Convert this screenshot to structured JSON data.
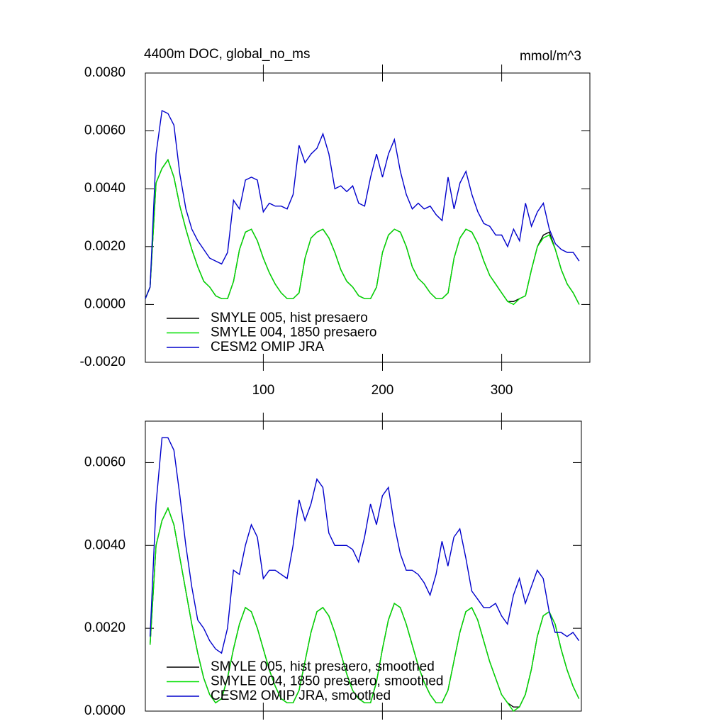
{
  "chart_data": [
    {
      "type": "line",
      "title": "4400m DOC, global_no_ms",
      "units": "mmol/m^3",
      "xlim": [
        1,
        374
      ],
      "ylim": [
        -0.002,
        0.008
      ],
      "xticks": [
        100,
        200,
        300
      ],
      "yticks": [
        {
          "value": -0.002,
          "label": "-0.0020"
        },
        {
          "value": 0,
          "label": "0.0000"
        },
        {
          "value": 0.002,
          "label": "0.0020"
        },
        {
          "value": 0.004,
          "label": "0.0040"
        },
        {
          "value": 0.006,
          "label": "0.0060"
        },
        {
          "value": 0.008,
          "label": "0.0080"
        }
      ],
      "legend": "lower left",
      "x": [
        1,
        5,
        10,
        15,
        20,
        25,
        30,
        35,
        40,
        45,
        50,
        55,
        60,
        65,
        70,
        75,
        80,
        85,
        90,
        95,
        100,
        105,
        110,
        115,
        120,
        125,
        130,
        135,
        140,
        145,
        150,
        155,
        160,
        165,
        170,
        175,
        180,
        185,
        190,
        195,
        200,
        205,
        210,
        215,
        220,
        225,
        230,
        235,
        240,
        245,
        250,
        255,
        260,
        265,
        270,
        275,
        280,
        285,
        290,
        295,
        300,
        305,
        310,
        315,
        320,
        325,
        330,
        335,
        340,
        345,
        350,
        355,
        360,
        365
      ],
      "series": [
        {
          "name": "SMYLE 005, hist presaero",
          "color": "#000000",
          "values": [
            0.0002,
            0.0006,
            0.0042,
            0.0047,
            0.005,
            0.0044,
            0.0034,
            0.0026,
            0.0019,
            0.0013,
            0.0008,
            0.0006,
            0.0003,
            0.0002,
            0.0002,
            0.0008,
            0.0019,
            0.0025,
            0.0026,
            0.0022,
            0.0016,
            0.0011,
            0.0007,
            0.0004,
            0.0002,
            0.0002,
            0.0004,
            0.0016,
            0.0023,
            0.0025,
            0.0026,
            0.0023,
            0.0018,
            0.0012,
            0.0008,
            0.0006,
            0.0003,
            0.0002,
            0.0002,
            0.0006,
            0.0018,
            0.0024,
            0.0026,
            0.0025,
            0.002,
            0.0013,
            0.0009,
            0.0007,
            0.0004,
            0.0002,
            0.0002,
            0.0004,
            0.0016,
            0.0023,
            0.0026,
            0.0025,
            0.0021,
            0.0015,
            0.001,
            0.0007,
            0.0004,
            0.0001,
            0.0001,
            0.0002,
            0.0003,
            0.0012,
            0.002,
            0.0024,
            0.0025,
            0.0019,
            0.0012,
            0.0007,
            0.0004,
            0.0
          ]
        },
        {
          "name": "SMYLE 004, 1850 presaero",
          "color": "#00e000",
          "values": [
            0.0002,
            0.0006,
            0.0042,
            0.0047,
            0.005,
            0.0044,
            0.0034,
            0.0026,
            0.0019,
            0.0013,
            0.0008,
            0.0006,
            0.0003,
            0.0002,
            0.0002,
            0.0008,
            0.0019,
            0.0025,
            0.0026,
            0.0022,
            0.0016,
            0.0011,
            0.0007,
            0.0004,
            0.0002,
            0.0002,
            0.0004,
            0.0016,
            0.0023,
            0.0025,
            0.0026,
            0.0023,
            0.0018,
            0.0012,
            0.0008,
            0.0006,
            0.0003,
            0.0002,
            0.0002,
            0.0006,
            0.0018,
            0.0024,
            0.0026,
            0.0025,
            0.002,
            0.0013,
            0.0009,
            0.0007,
            0.0004,
            0.0002,
            0.0002,
            0.0004,
            0.0016,
            0.0023,
            0.0026,
            0.0025,
            0.0021,
            0.0015,
            0.001,
            0.0007,
            0.0004,
            0.0001,
            0.0,
            0.0002,
            0.0003,
            0.0012,
            0.002,
            0.0023,
            0.0024,
            0.0019,
            0.0012,
            0.0007,
            0.0004,
            0.0
          ]
        },
        {
          "name": "CESM2 OMIP JRA",
          "color": "#0000cc",
          "values": [
            0.0002,
            0.0006,
            0.0052,
            0.0067,
            0.0066,
            0.0062,
            0.0045,
            0.0033,
            0.0026,
            0.0022,
            0.0019,
            0.0016,
            0.0015,
            0.0014,
            0.0018,
            0.0036,
            0.0033,
            0.0043,
            0.0044,
            0.0043,
            0.0032,
            0.0035,
            0.0034,
            0.0034,
            0.0033,
            0.0038,
            0.0055,
            0.0049,
            0.0052,
            0.0054,
            0.0059,
            0.0052,
            0.004,
            0.0041,
            0.0039,
            0.0041,
            0.0035,
            0.0034,
            0.0044,
            0.0052,
            0.0044,
            0.0052,
            0.0057,
            0.0046,
            0.0038,
            0.0033,
            0.0035,
            0.0033,
            0.0034,
            0.0031,
            0.0029,
            0.0044,
            0.0033,
            0.0042,
            0.0046,
            0.0038,
            0.0032,
            0.0028,
            0.0027,
            0.0024,
            0.0024,
            0.002,
            0.0026,
            0.0022,
            0.0035,
            0.0027,
            0.0032,
            0.0035,
            0.0026,
            0.0021,
            0.0019,
            0.0018,
            0.0018,
            0.0015
          ]
        }
      ]
    },
    {
      "type": "line",
      "xlim": [
        1,
        367
      ],
      "ylim": [
        0,
        0.007
      ],
      "xticks": [
        100,
        200,
        300
      ],
      "yticks": [
        {
          "value": 0,
          "label": "0.0000"
        },
        {
          "value": 0.002,
          "label": "0.0020"
        },
        {
          "value": 0.004,
          "label": "0.0040"
        },
        {
          "value": 0.006,
          "label": "0.0060"
        }
      ],
      "legend": "lower left",
      "x": [
        5,
        10,
        15,
        20,
        25,
        30,
        35,
        40,
        45,
        50,
        55,
        60,
        65,
        70,
        75,
        80,
        85,
        90,
        95,
        100,
        105,
        110,
        115,
        120,
        125,
        130,
        135,
        140,
        145,
        150,
        155,
        160,
        165,
        170,
        175,
        180,
        185,
        190,
        195,
        200,
        205,
        210,
        215,
        220,
        225,
        230,
        235,
        240,
        245,
        250,
        255,
        260,
        265,
        270,
        275,
        280,
        285,
        290,
        295,
        300,
        305,
        310,
        315,
        320,
        325,
        330,
        335,
        340,
        345,
        350,
        355,
        360,
        365
      ],
      "series": [
        {
          "name": "SMYLE 005, hist presaero, smoothed",
          "color": "#000000",
          "values": [
            0.0016,
            0.004,
            0.0046,
            0.0049,
            0.0045,
            0.0037,
            0.0029,
            0.0021,
            0.0014,
            0.0008,
            0.0004,
            0.0002,
            0.0003,
            0.0008,
            0.0015,
            0.0021,
            0.0025,
            0.0024,
            0.002,
            0.0015,
            0.001,
            0.0006,
            0.0003,
            0.0002,
            0.0002,
            0.0005,
            0.0012,
            0.0019,
            0.0024,
            0.0025,
            0.0023,
            0.0019,
            0.0014,
            0.0009,
            0.0005,
            0.0003,
            0.0002,
            0.0002,
            0.0007,
            0.0015,
            0.0022,
            0.0026,
            0.0025,
            0.0021,
            0.0016,
            0.0011,
            0.0007,
            0.0004,
            0.0002,
            0.0002,
            0.0005,
            0.0012,
            0.0019,
            0.0024,
            0.0025,
            0.0022,
            0.0017,
            0.0012,
            0.0008,
            0.0004,
            0.0002,
            0.0001,
            0.0001,
            0.0004,
            0.001,
            0.0018,
            0.0023,
            0.0024,
            0.0021,
            0.0015,
            0.001,
            0.0006,
            0.0003
          ]
        },
        {
          "name": "SMYLE 004, 1850 presaero, smoothed",
          "color": "#00e000",
          "values": [
            0.0016,
            0.004,
            0.0046,
            0.0049,
            0.0045,
            0.0037,
            0.0029,
            0.0021,
            0.0014,
            0.0008,
            0.0004,
            0.0002,
            0.0003,
            0.0008,
            0.0015,
            0.0021,
            0.0025,
            0.0024,
            0.002,
            0.0015,
            0.001,
            0.0006,
            0.0003,
            0.0002,
            0.0002,
            0.0005,
            0.0012,
            0.0019,
            0.0024,
            0.0025,
            0.0023,
            0.0019,
            0.0014,
            0.0009,
            0.0005,
            0.0003,
            0.0002,
            0.0002,
            0.0007,
            0.0015,
            0.0022,
            0.0026,
            0.0025,
            0.0021,
            0.0016,
            0.0011,
            0.0007,
            0.0004,
            0.0002,
            0.0002,
            0.0005,
            0.0012,
            0.0019,
            0.0024,
            0.0025,
            0.0022,
            0.0017,
            0.0012,
            0.0008,
            0.0004,
            0.0002,
            0.0,
            0.0001,
            0.0004,
            0.001,
            0.0018,
            0.0023,
            0.0024,
            0.0021,
            0.0015,
            0.001,
            0.0006,
            0.0003
          ]
        },
        {
          "name": "CESM2 OMIP JRA, smoothed",
          "color": "#0000cc",
          "values": [
            0.0018,
            0.005,
            0.0066,
            0.0066,
            0.0063,
            0.0052,
            0.004,
            0.003,
            0.0022,
            0.002,
            0.0017,
            0.0015,
            0.0014,
            0.002,
            0.0034,
            0.0033,
            0.004,
            0.0045,
            0.0042,
            0.0032,
            0.0034,
            0.0034,
            0.0033,
            0.0032,
            0.004,
            0.0051,
            0.0046,
            0.005,
            0.0056,
            0.0054,
            0.0043,
            0.004,
            0.004,
            0.004,
            0.0039,
            0.0036,
            0.0042,
            0.005,
            0.0045,
            0.0052,
            0.0054,
            0.0045,
            0.0038,
            0.0034,
            0.0034,
            0.0033,
            0.0031,
            0.0028,
            0.0033,
            0.0041,
            0.0035,
            0.0042,
            0.0044,
            0.0037,
            0.0029,
            0.0027,
            0.0025,
            0.0025,
            0.0026,
            0.0023,
            0.0021,
            0.0028,
            0.0032,
            0.0026,
            0.003,
            0.0034,
            0.0032,
            0.0024,
            0.0019,
            0.0019,
            0.0018,
            0.0019,
            0.0017
          ]
        }
      ]
    }
  ]
}
